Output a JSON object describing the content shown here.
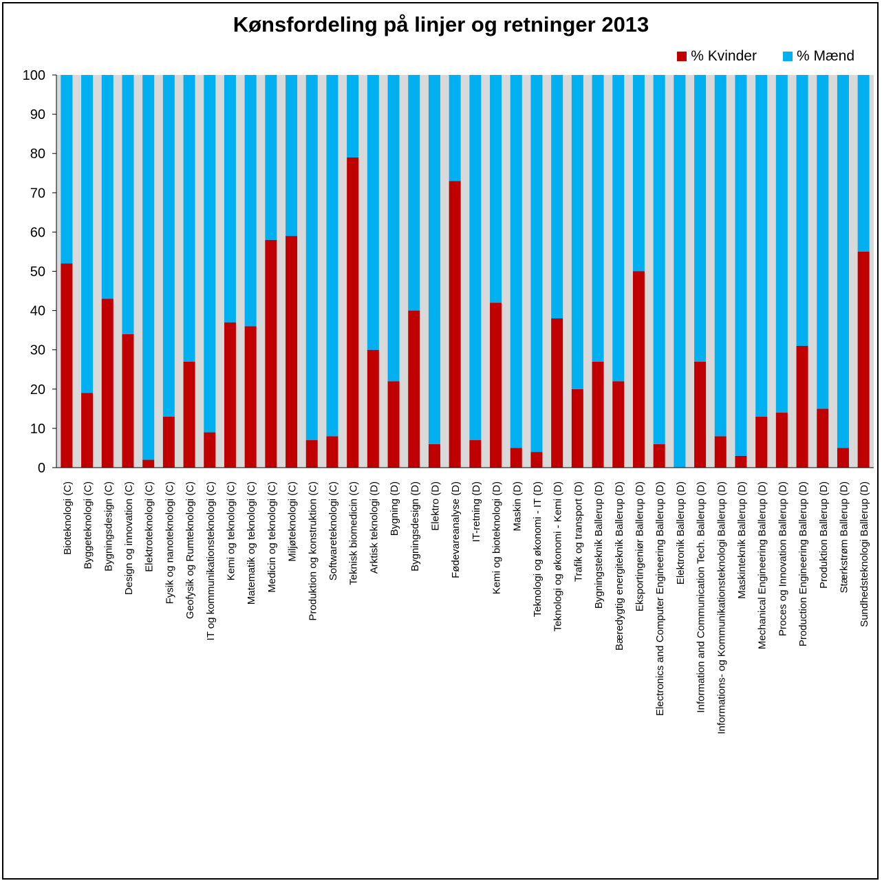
{
  "chart_data": {
    "type": "bar",
    "stacked": true,
    "title": "Kønsfordeling på linjer og retninger 2013",
    "xlabel": "",
    "ylabel": "",
    "ylim": [
      0,
      100
    ],
    "yticks": [
      0,
      10,
      20,
      30,
      40,
      50,
      60,
      70,
      80,
      90,
      100
    ],
    "grid": false,
    "legend_position": "top-right",
    "categories": [
      "Bioteknologi (C)",
      "Byggeteknologi (C)",
      "Bygningsdesign (C)",
      "Design og innovation (C)",
      "Elektroteknologi (C)",
      "Fysik og nanoteknologi (C)",
      "Geofysik og Rumteknologi (C)",
      "IT og kommunikationsteknologi (C)",
      "Kemi og teknologi (C)",
      "Matematik og teknologi (C)",
      "Medicin og teknologi (C)",
      "Miljøteknologi (C)",
      "Produktion og konstruktion (C)",
      "Softwareteknologi (C)",
      "Teknisk biomedicin (C)",
      "Arktisk teknologi (D)",
      "Bygning (D)",
      "Bygningsdesign (D)",
      "Elektro (D)",
      "Fødevareanalyse (D)",
      "IT-retning (D)",
      "Kemi og bioteknologi (D)",
      "Maskin (D)",
      "Teknologi og økonomi - IT (D)",
      "Teknologi og økonomi - Kemi (D)",
      "Trafik og transport (D)",
      "Bygningsteknik Ballerup (D)",
      "Bæredygtig energiteknik Ballerup (D)",
      "Eksportingeniør Ballerup (D)",
      "Electronics and Computer Engineering Ballerup (D)",
      "Elektronik Ballerup (D)",
      "Information and Communication Tech. Ballerup (D)",
      "Informations- og Kommunikationsteknologi Ballerup (D)",
      "Maskinteknik Ballerup (D)",
      "Mechanical Engineering Ballerup (D)",
      "Proces og Innovation Ballerup (D)",
      "Production Engineering Ballerup (D)",
      "Produktion Ballerup (D)",
      "Stærkstrøm Ballerup (D)",
      "Sundhedsteknologi Ballerup (D)"
    ],
    "series": [
      {
        "name": "% Kvinder",
        "color": "#c00000",
        "values": [
          52,
          19,
          43,
          34,
          2,
          13,
          27,
          9,
          37,
          36,
          58,
          59,
          7,
          8,
          79,
          30,
          22,
          40,
          6,
          73,
          7,
          42,
          5,
          4,
          38,
          20,
          27,
          22,
          50,
          6,
          0,
          27,
          8,
          3,
          13,
          14,
          31,
          15,
          5,
          55
        ]
      },
      {
        "name": "% Mænd",
        "color": "#00b0f0",
        "values": [
          48,
          81,
          57,
          66,
          98,
          87,
          73,
          91,
          63,
          64,
          42,
          41,
          93,
          92,
          21,
          70,
          78,
          60,
          94,
          27,
          93,
          58,
          95,
          96,
          62,
          80,
          73,
          78,
          50,
          94,
          100,
          73,
          92,
          97,
          87,
          86,
          69,
          85,
          95,
          45
        ]
      }
    ],
    "plot_background": "#d9d9d9"
  }
}
